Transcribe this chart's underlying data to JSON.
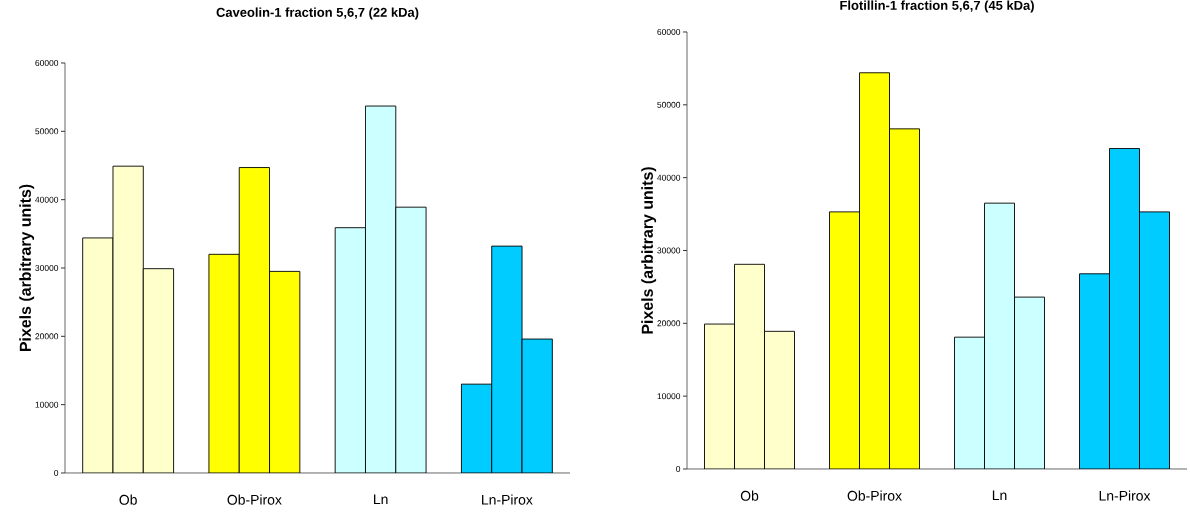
{
  "chart_data": [
    {
      "type": "bar",
      "title": "Caveolin-1 fraction 5,6,7 (22 kDa)",
      "ylabel": "Pixels (arbitrary units)",
      "categories": [
        "Ob",
        "Ob-Pirox",
        "Ln",
        "Ln-Pirox"
      ],
      "series": [
        {
          "values": [
            34400,
            32000,
            35900,
            13000
          ],
          "colors": [
            "#ffffcc",
            "#ffff00",
            "#ccffff",
            "#00ccff"
          ]
        },
        {
          "values": [
            44900,
            44700,
            53700,
            33200
          ],
          "colors": [
            "#ffffcc",
            "#ffff00",
            "#ccffff",
            "#00ccff"
          ]
        },
        {
          "values": [
            29900,
            29500,
            38900,
            19600
          ],
          "colors": [
            "#ffffcc",
            "#ffff00",
            "#ccffff",
            "#00ccff"
          ]
        }
      ],
      "ylim": [
        0,
        60000
      ],
      "yticks": [
        0,
        10000,
        20000,
        30000,
        40000,
        50000,
        60000
      ]
    },
    {
      "type": "bar",
      "title": "Flotillin-1 fraction 5,6,7 (45 kDa)",
      "ylabel": "Pixels (arbitrary units)",
      "categories": [
        "Ob",
        "Ob-Pirox",
        "Ln",
        "Ln-Pirox"
      ],
      "series": [
        {
          "values": [
            19900,
            35300,
            18100,
            26800
          ],
          "colors": [
            "#ffffcc",
            "#ffff00",
            "#ccffff",
            "#00ccff"
          ]
        },
        {
          "values": [
            28100,
            54400,
            36500,
            44000
          ],
          "colors": [
            "#ffffcc",
            "#ffff00",
            "#ccffff",
            "#00ccff"
          ]
        },
        {
          "values": [
            18900,
            46700,
            23600,
            35300
          ],
          "colors": [
            "#ffffcc",
            "#ffff00",
            "#ccffff",
            "#00ccff"
          ]
        }
      ],
      "ylim": [
        0,
        60000
      ],
      "yticks": [
        0,
        10000,
        20000,
        30000,
        40000,
        50000,
        60000
      ]
    }
  ]
}
